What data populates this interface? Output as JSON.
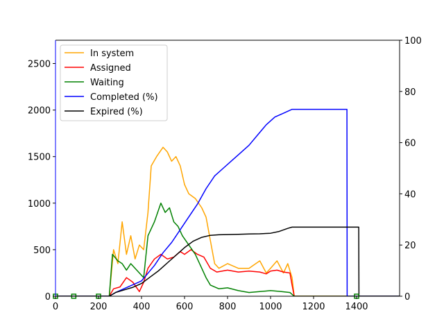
{
  "chart_data": {
    "type": "line",
    "title": "",
    "xlabel": "",
    "ylabel_left": "",
    "ylabel_right": "",
    "xlim": [
      0,
      1600
    ],
    "ylim_left": [
      0,
      2750
    ],
    "ylim_right": [
      0,
      100
    ],
    "xticks": [
      "0",
      "200",
      "400",
      "600",
      "800",
      "1000",
      "1200",
      "1400"
    ],
    "xtick_values": [
      0,
      200,
      400,
      600,
      800,
      1000,
      1200,
      1400
    ],
    "yticks_left": [
      "0",
      "500",
      "1000",
      "1500",
      "2000",
      "2500"
    ],
    "ytick_values_left": [
      0,
      500,
      1000,
      1500,
      2000,
      2500
    ],
    "yticks_right": [
      "0",
      "20",
      "40",
      "60",
      "80",
      "100"
    ],
    "ytick_values_right": [
      0,
      20,
      40,
      60,
      80,
      100
    ],
    "grid": false,
    "legend_position": "upper-left",
    "series": [
      {
        "name": "In system",
        "axis": "left",
        "color": "#ffa500",
        "points": [
          [
            0,
            0
          ],
          [
            250,
            0
          ],
          [
            270,
            500
          ],
          [
            290,
            350
          ],
          [
            310,
            800
          ],
          [
            330,
            450
          ],
          [
            350,
            650
          ],
          [
            370,
            400
          ],
          [
            390,
            550
          ],
          [
            410,
            500
          ],
          [
            430,
            900
          ],
          [
            445,
            1400
          ],
          [
            470,
            1500
          ],
          [
            500,
            1600
          ],
          [
            520,
            1550
          ],
          [
            540,
            1450
          ],
          [
            560,
            1500
          ],
          [
            580,
            1400
          ],
          [
            600,
            1200
          ],
          [
            620,
            1100
          ],
          [
            650,
            1050
          ],
          [
            680,
            950
          ],
          [
            700,
            850
          ],
          [
            720,
            600
          ],
          [
            740,
            350
          ],
          [
            760,
            300
          ],
          [
            800,
            350
          ],
          [
            850,
            300
          ],
          [
            900,
            300
          ],
          [
            950,
            380
          ],
          [
            980,
            250
          ],
          [
            1000,
            300
          ],
          [
            1030,
            380
          ],
          [
            1060,
            250
          ],
          [
            1080,
            350
          ],
          [
            1100,
            200
          ],
          [
            1110,
            0
          ],
          [
            1600,
            0
          ]
        ]
      },
      {
        "name": "Assigned",
        "axis": "left",
        "color": "#ff0000",
        "points": [
          [
            0,
            0
          ],
          [
            250,
            0
          ],
          [
            270,
            80
          ],
          [
            300,
            100
          ],
          [
            330,
            200
          ],
          [
            360,
            150
          ],
          [
            390,
            50
          ],
          [
            410,
            150
          ],
          [
            430,
            300
          ],
          [
            460,
            400
          ],
          [
            490,
            450
          ],
          [
            520,
            400
          ],
          [
            550,
            420
          ],
          [
            580,
            480
          ],
          [
            600,
            450
          ],
          [
            630,
            500
          ],
          [
            660,
            450
          ],
          [
            690,
            420
          ],
          [
            720,
            300
          ],
          [
            750,
            260
          ],
          [
            800,
            280
          ],
          [
            850,
            260
          ],
          [
            900,
            270
          ],
          [
            950,
            260
          ],
          [
            980,
            240
          ],
          [
            1000,
            270
          ],
          [
            1030,
            280
          ],
          [
            1060,
            260
          ],
          [
            1090,
            250
          ],
          [
            1100,
            120
          ],
          [
            1110,
            0
          ],
          [
            1600,
            0
          ]
        ]
      },
      {
        "name": "Waiting",
        "axis": "left",
        "color": "#008000",
        "points": [
          [
            0,
            0
          ],
          [
            250,
            0
          ],
          [
            265,
            450
          ],
          [
            290,
            380
          ],
          [
            310,
            350
          ],
          [
            330,
            280
          ],
          [
            350,
            350
          ],
          [
            370,
            300
          ],
          [
            390,
            250
          ],
          [
            410,
            200
          ],
          [
            430,
            650
          ],
          [
            460,
            800
          ],
          [
            490,
            1000
          ],
          [
            510,
            900
          ],
          [
            530,
            950
          ],
          [
            550,
            800
          ],
          [
            570,
            750
          ],
          [
            590,
            650
          ],
          [
            620,
            550
          ],
          [
            650,
            450
          ],
          [
            680,
            300
          ],
          [
            700,
            200
          ],
          [
            720,
            120
          ],
          [
            760,
            80
          ],
          [
            800,
            90
          ],
          [
            850,
            60
          ],
          [
            900,
            40
          ],
          [
            950,
            50
          ],
          [
            1000,
            60
          ],
          [
            1050,
            50
          ],
          [
            1090,
            40
          ],
          [
            1100,
            20
          ],
          [
            1110,
            0
          ],
          [
            1600,
            0
          ]
        ]
      },
      {
        "name": "Completed (%)",
        "axis": "right",
        "color": "#0000ff",
        "points": [
          [
            0,
            0
          ],
          [
            250,
            0
          ],
          [
            280,
            1.5
          ],
          [
            320,
            3
          ],
          [
            360,
            4.5
          ],
          [
            400,
            6
          ],
          [
            430,
            9
          ],
          [
            460,
            12
          ],
          [
            500,
            17
          ],
          [
            540,
            21
          ],
          [
            580,
            26
          ],
          [
            620,
            31
          ],
          [
            660,
            36
          ],
          [
            700,
            42
          ],
          [
            740,
            47
          ],
          [
            780,
            50
          ],
          [
            820,
            53
          ],
          [
            860,
            56
          ],
          [
            900,
            59
          ],
          [
            940,
            63
          ],
          [
            980,
            67
          ],
          [
            1020,
            70
          ],
          [
            1060,
            71.5
          ],
          [
            1100,
            73
          ],
          [
            1355,
            73
          ],
          [
            1356,
            0
          ],
          [
            1600,
            0
          ]
        ]
      },
      {
        "name": "Expired (%)",
        "axis": "right",
        "color": "#000000",
        "points": [
          [
            0,
            0
          ],
          [
            250,
            0
          ],
          [
            280,
            1.5
          ],
          [
            320,
            2.5
          ],
          [
            360,
            3.5
          ],
          [
            400,
            5
          ],
          [
            440,
            7.5
          ],
          [
            480,
            10
          ],
          [
            520,
            13
          ],
          [
            560,
            16
          ],
          [
            600,
            19
          ],
          [
            640,
            21.5
          ],
          [
            680,
            23
          ],
          [
            720,
            23.8
          ],
          [
            760,
            24
          ],
          [
            800,
            24.1
          ],
          [
            850,
            24.2
          ],
          [
            900,
            24.3
          ],
          [
            950,
            24.4
          ],
          [
            1000,
            24.6
          ],
          [
            1040,
            25.3
          ],
          [
            1080,
            26.5
          ],
          [
            1100,
            27
          ],
          [
            1410,
            27
          ],
          [
            1411,
            0
          ],
          [
            1600,
            0
          ]
        ]
      }
    ]
  }
}
